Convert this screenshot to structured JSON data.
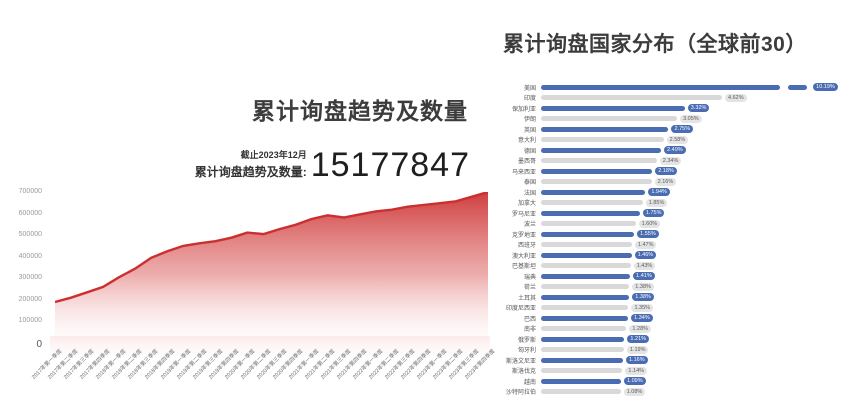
{
  "left_chart": {
    "title": "累计询盘趋势及数量",
    "as_of_label": "截止2023年12月",
    "total_label": "累计询盘趋势及数量:",
    "total_value": "15177847"
  },
  "right_chart": {
    "title": "累计询盘国家分布（全球前30）"
  },
  "colors": {
    "bar_blue": "#4a6cb3",
    "bar_gray": "#d9d9d9",
    "pill_blue_bg": "#4a6cb3",
    "pill_blue_text": "#ffffff",
    "pill_gray_bg": "#e4e4e4",
    "pill_gray_text": "#5a5a5a",
    "area_line_red": "#cb2f2f",
    "area_fill_top": "#cd3434",
    "area_fill_bottom": "#fff3f3"
  },
  "chart_data": [
    {
      "type": "area",
      "title": "累计询盘趋势及数量",
      "note": "截止2023年12月",
      "total": 15177847,
      "x": [
        "2017年第一季度",
        "2017年第二季度",
        "2017年第三季度",
        "2017年第四季度",
        "2018年第一季度",
        "2018年第二季度",
        "2018年第三季度",
        "2018年第四季度",
        "2019年第一季度",
        "2019年第二季度",
        "2019年第三季度",
        "2019年第四季度",
        "2020年第一季度",
        "2020年第二季度",
        "2020年第三季度",
        "2020年第四季度",
        "2021年第一季度",
        "2021年第二季度",
        "2021年第三季度",
        "2021年第四季度",
        "2022年第一季度",
        "2022年第二季度",
        "2022年第三季度",
        "2022年第四季度",
        "2023年第一季度",
        "2023年第二季度",
        "2023年第三季度",
        "2023年第四季度"
      ],
      "values": [
        190000,
        210000,
        235000,
        260000,
        305000,
        345000,
        395000,
        425000,
        450000,
        462000,
        472000,
        488000,
        512000,
        505000,
        528000,
        548000,
        575000,
        592000,
        582000,
        596000,
        610000,
        618000,
        632000,
        640000,
        648000,
        657000,
        678000,
        700000
      ],
      "ylim": [
        0,
        700000
      ],
      "y_ticks": [
        0,
        100000,
        200000,
        300000,
        400000,
        500000,
        600000,
        700000
      ],
      "grid": false,
      "legend": "none"
    },
    {
      "type": "bar",
      "orientation": "horizontal",
      "title": "累计询盘国家分布（全球前30）",
      "categories": [
        "美国",
        "印度",
        "保加利亚",
        "伊朗",
        "英国",
        "意大利",
        "德国",
        "墨西哥",
        "马来西亚",
        "泰国",
        "法国",
        "加拿大",
        "罗马尼亚",
        "波兰",
        "克罗地亚",
        "西班牙",
        "澳大利亚",
        "巴基斯坦",
        "瑞典",
        "荷兰",
        "土耳其",
        "印度尼西亚",
        "巴西",
        "南非",
        "俄罗斯",
        "匈牙利",
        "斯洛文尼亚",
        "斯洛伐克",
        "越南",
        "沙特阿拉伯"
      ],
      "values": [
        10.19,
        4.62,
        3.32,
        3.05,
        2.75,
        2.58,
        2.49,
        2.34,
        2.18,
        2.16,
        1.94,
        1.85,
        1.75,
        1.6,
        1.55,
        1.47,
        1.46,
        1.43,
        1.41,
        1.38,
        1.38,
        1.35,
        1.34,
        1.28,
        1.21,
        1.19,
        1.16,
        1.14,
        1.09,
        1.08
      ],
      "labels": [
        "10.19%",
        "4.62%",
        "3.32%",
        "3.05%",
        "2.75%",
        "2.58%",
        "2.49%",
        "2.34%",
        "2.18%",
        "2.16%",
        "1.94%",
        "1.85%",
        "1.75%",
        "1.60%",
        "1.55%",
        "1.47%",
        "1.46%",
        "1.43%",
        "1.41%",
        "1.38%",
        "1.38%",
        "1.35%",
        "1.34%",
        "1.28%",
        "1.21%",
        "1.19%",
        "1.16%",
        "1.14%",
        "1.09%",
        "1.08%"
      ],
      "broken_axis_first_bar": true,
      "legend": "none",
      "unit": "%"
    }
  ]
}
